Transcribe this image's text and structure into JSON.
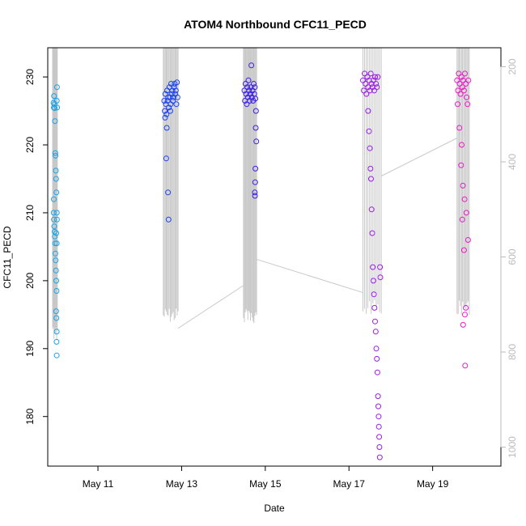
{
  "chart_data": {
    "type": "scatter",
    "title": "ATOM4 Northbound CFC11_PECD",
    "xlabel": "Date",
    "ylabel": "CFC11_PECD",
    "xlim": [
      "2017-05-09 19:12",
      "2017-05-20 15:10"
    ],
    "ylim": [
      172.7,
      234.3
    ],
    "y2lim": [
      1040,
      160
    ],
    "x_ticks": [
      {
        "date": "2017-05-11",
        "label": "May 11"
      },
      {
        "date": "2017-05-13",
        "label": "May 13"
      },
      {
        "date": "2017-05-15",
        "label": "May 15"
      },
      {
        "date": "2017-05-17",
        "label": "May 17"
      },
      {
        "date": "2017-05-19",
        "label": "May 19"
      }
    ],
    "y_ticks": [
      180,
      190,
      200,
      210,
      220,
      230
    ],
    "y2_ticks": [
      200,
      400,
      600,
      800,
      1000
    ],
    "grid": false,
    "legend": "none",
    "colors": {
      "flight_1": "#1aa3e8",
      "flight_2": "#1a44ee",
      "flight_3": "#3a1ee8",
      "flight_4": "#9a1ee8",
      "flight_5": "#e81ac8",
      "altitude_line": "#c8c8c8"
    },
    "series": [
      {
        "values": [
          {
            "x": "2017-05-09 22:30",
            "y": 226.2
          },
          {
            "x": "2017-05-09 22:40",
            "y": 225.5
          },
          {
            "x": "2017-05-09 22:50",
            "y": 227.2
          },
          {
            "x": "2017-05-09 23:00",
            "y": 226.0
          },
          {
            "x": "2017-05-09 23:10",
            "y": 225.4
          },
          {
            "x": "2017-05-09 23:20",
            "y": 223.5
          },
          {
            "x": "2017-05-09 23:30",
            "y": 218.8
          },
          {
            "x": "2017-05-09 23:40",
            "y": 218.4
          },
          {
            "x": "2017-05-09 23:50",
            "y": 216.2
          },
          {
            "x": "2017-05-10 00:00",
            "y": 215.0
          },
          {
            "x": "2017-05-10 00:10",
            "y": 213.0
          },
          {
            "x": "2017-05-09 22:40",
            "y": 212.0
          },
          {
            "x": "2017-05-09 22:35",
            "y": 210.0
          },
          {
            "x": "2017-05-09 22:45",
            "y": 209.0
          },
          {
            "x": "2017-05-09 22:55",
            "y": 208.0
          },
          {
            "x": "2017-05-09 23:05",
            "y": 207.2
          },
          {
            "x": "2017-05-09 23:15",
            "y": 206.5
          },
          {
            "x": "2017-05-09 23:25",
            "y": 205.5
          },
          {
            "x": "2017-05-09 23:35",
            "y": 204.0
          },
          {
            "x": "2017-05-09 23:45",
            "y": 203.0
          },
          {
            "x": "2017-05-09 23:55",
            "y": 201.5
          },
          {
            "x": "2017-05-10 00:05",
            "y": 200.0
          },
          {
            "x": "2017-05-10 00:15",
            "y": 198.5
          },
          {
            "x": "2017-05-10 00:00",
            "y": 195.5
          },
          {
            "x": "2017-05-10 00:10",
            "y": 194.5
          },
          {
            "x": "2017-05-10 00:20",
            "y": 192.5
          },
          {
            "x": "2017-05-10 00:15",
            "y": 191.0
          },
          {
            "x": "2017-05-10 00:20",
            "y": 189.0
          },
          {
            "x": "2017-05-10 00:30",
            "y": 228.5
          },
          {
            "x": "2017-05-10 00:25",
            "y": 226.5
          },
          {
            "x": "2017-05-10 00:35",
            "y": 225.5
          },
          {
            "x": "2017-05-10 00:20",
            "y": 205.5
          },
          {
            "x": "2017-05-10 00:25",
            "y": 210.0
          },
          {
            "x": "2017-05-10 00:30",
            "y": 209.0
          },
          {
            "x": "2017-05-10 00:05",
            "y": 207.0
          }
        ]
      },
      {
        "values": [
          {
            "x": "2017-05-12 14:00",
            "y": 226.5
          },
          {
            "x": "2017-05-12 14:20",
            "y": 225.0
          },
          {
            "x": "2017-05-12 14:40",
            "y": 227.5
          },
          {
            "x": "2017-05-12 15:00",
            "y": 226.0
          },
          {
            "x": "2017-05-12 15:20",
            "y": 224.5
          },
          {
            "x": "2017-05-12 15:40",
            "y": 228.0
          },
          {
            "x": "2017-05-12 16:00",
            "y": 226.5
          },
          {
            "x": "2017-05-12 16:20",
            "y": 227.0
          },
          {
            "x": "2017-05-12 16:40",
            "y": 225.5
          },
          {
            "x": "2017-05-12 17:00",
            "y": 228.5
          },
          {
            "x": "2017-05-12 17:20",
            "y": 227.0
          },
          {
            "x": "2017-05-12 17:40",
            "y": 226.0
          },
          {
            "x": "2017-05-12 18:00",
            "y": 229.0
          },
          {
            "x": "2017-05-12 18:20",
            "y": 227.5
          },
          {
            "x": "2017-05-12 18:40",
            "y": 228.0
          },
          {
            "x": "2017-05-12 19:00",
            "y": 226.5
          },
          {
            "x": "2017-05-12 19:20",
            "y": 227.0
          },
          {
            "x": "2017-05-12 19:40",
            "y": 228.5
          },
          {
            "x": "2017-05-12 20:00",
            "y": 229.0
          },
          {
            "x": "2017-05-12 20:20",
            "y": 227.5
          },
          {
            "x": "2017-05-12 20:40",
            "y": 228.0
          },
          {
            "x": "2017-05-12 21:00",
            "y": 226.0
          },
          {
            "x": "2017-05-12 21:20",
            "y": 229.2
          },
          {
            "x": "2017-05-12 21:40",
            "y": 227.0
          },
          {
            "x": "2017-05-12 15:30",
            "y": 222.5
          },
          {
            "x": "2017-05-12 15:10",
            "y": 218.0
          },
          {
            "x": "2017-05-12 16:10",
            "y": 213.0
          },
          {
            "x": "2017-05-12 16:30",
            "y": 209.0
          },
          {
            "x": "2017-05-12 14:30",
            "y": 224.0
          },
          {
            "x": "2017-05-12 17:30",
            "y": 225.0
          }
        ]
      },
      {
        "values": [
          {
            "x": "2017-05-14 12:00",
            "y": 228.0
          },
          {
            "x": "2017-05-14 12:20",
            "y": 226.5
          },
          {
            "x": "2017-05-14 12:40",
            "y": 229.0
          },
          {
            "x": "2017-05-14 13:00",
            "y": 227.5
          },
          {
            "x": "2017-05-14 13:20",
            "y": 226.0
          },
          {
            "x": "2017-05-14 13:40",
            "y": 228.5
          },
          {
            "x": "2017-05-14 14:00",
            "y": 227.0
          },
          {
            "x": "2017-05-14 14:20",
            "y": 229.5
          },
          {
            "x": "2017-05-14 14:40",
            "y": 228.0
          },
          {
            "x": "2017-05-14 15:00",
            "y": 226.5
          },
          {
            "x": "2017-05-14 15:20",
            "y": 227.5
          },
          {
            "x": "2017-05-14 15:40",
            "y": 228.5
          },
          {
            "x": "2017-05-14 16:00",
            "y": 231.7
          },
          {
            "x": "2017-05-14 16:20",
            "y": 227.0
          },
          {
            "x": "2017-05-14 16:40",
            "y": 228.0
          },
          {
            "x": "2017-05-14 17:00",
            "y": 226.5
          },
          {
            "x": "2017-05-14 17:20",
            "y": 229.0
          },
          {
            "x": "2017-05-14 17:40",
            "y": 227.5
          },
          {
            "x": "2017-05-14 18:00",
            "y": 228.5
          },
          {
            "x": "2017-05-14 18:20",
            "y": 226.8
          },
          {
            "x": "2017-05-14 18:40",
            "y": 225.0
          },
          {
            "x": "2017-05-14 18:30",
            "y": 222.5
          },
          {
            "x": "2017-05-14 18:50",
            "y": 220.5
          },
          {
            "x": "2017-05-14 18:20",
            "y": 216.5
          },
          {
            "x": "2017-05-14 18:10",
            "y": 214.5
          },
          {
            "x": "2017-05-14 18:00",
            "y": 213.0
          },
          {
            "x": "2017-05-14 18:05",
            "y": 212.5
          }
        ]
      },
      {
        "values": [
          {
            "x": "2017-05-17 08:00",
            "y": 229.5
          },
          {
            "x": "2017-05-17 08:30",
            "y": 228.0
          },
          {
            "x": "2017-05-17 09:00",
            "y": 230.5
          },
          {
            "x": "2017-05-17 09:30",
            "y": 229.0
          },
          {
            "x": "2017-05-17 10:00",
            "y": 227.5
          },
          {
            "x": "2017-05-17 10:30",
            "y": 230.0
          },
          {
            "x": "2017-05-17 11:00",
            "y": 228.5
          },
          {
            "x": "2017-05-17 11:30",
            "y": 229.5
          },
          {
            "x": "2017-05-17 12:00",
            "y": 228.0
          },
          {
            "x": "2017-05-17 12:30",
            "y": 230.5
          },
          {
            "x": "2017-05-17 13:00",
            "y": 229.0
          },
          {
            "x": "2017-05-17 13:30",
            "y": 228.5
          },
          {
            "x": "2017-05-17 14:00",
            "y": 229.5
          },
          {
            "x": "2017-05-17 14:30",
            "y": 228.0
          },
          {
            "x": "2017-05-17 15:00",
            "y": 230.0
          },
          {
            "x": "2017-05-17 15:30",
            "y": 229.0
          },
          {
            "x": "2017-05-17 16:00",
            "y": 228.5
          },
          {
            "x": "2017-05-17 16:30",
            "y": 230.0
          },
          {
            "x": "2017-05-17 11:00",
            "y": 225.0
          },
          {
            "x": "2017-05-17 11:30",
            "y": 222.0
          },
          {
            "x": "2017-05-17 12:00",
            "y": 219.5
          },
          {
            "x": "2017-05-17 12:20",
            "y": 216.5
          },
          {
            "x": "2017-05-17 12:40",
            "y": 215.0
          },
          {
            "x": "2017-05-17 13:00",
            "y": 210.5
          },
          {
            "x": "2017-05-17 13:20",
            "y": 207.0
          },
          {
            "x": "2017-05-17 13:40",
            "y": 202.0
          },
          {
            "x": "2017-05-17 14:00",
            "y": 200.0
          },
          {
            "x": "2017-05-17 14:20",
            "y": 198.0
          },
          {
            "x": "2017-05-17 14:40",
            "y": 196.0
          },
          {
            "x": "2017-05-17 15:00",
            "y": 194.0
          },
          {
            "x": "2017-05-17 15:20",
            "y": 192.5
          },
          {
            "x": "2017-05-17 15:40",
            "y": 190.0
          },
          {
            "x": "2017-05-17 16:00",
            "y": 188.5
          },
          {
            "x": "2017-05-17 16:20",
            "y": 186.5
          },
          {
            "x": "2017-05-17 16:40",
            "y": 183.0
          },
          {
            "x": "2017-05-17 16:50",
            "y": 181.5
          },
          {
            "x": "2017-05-17 17:00",
            "y": 180.0
          },
          {
            "x": "2017-05-17 17:10",
            "y": 178.5
          },
          {
            "x": "2017-05-17 17:20",
            "y": 177.0
          },
          {
            "x": "2017-05-17 17:30",
            "y": 175.5
          },
          {
            "x": "2017-05-17 17:40",
            "y": 174.0
          },
          {
            "x": "2017-05-17 17:50",
            "y": 202.0
          },
          {
            "x": "2017-05-17 18:00",
            "y": 200.5
          }
        ]
      },
      {
        "values": [
          {
            "x": "2017-05-19 14:00",
            "y": 229.5
          },
          {
            "x": "2017-05-19 14:30",
            "y": 228.0
          },
          {
            "x": "2017-05-19 15:00",
            "y": 230.5
          },
          {
            "x": "2017-05-19 15:30",
            "y": 229.0
          },
          {
            "x": "2017-05-19 16:00",
            "y": 227.5
          },
          {
            "x": "2017-05-19 16:30",
            "y": 230.0
          },
          {
            "x": "2017-05-19 17:00",
            "y": 228.5
          },
          {
            "x": "2017-05-19 17:30",
            "y": 229.5
          },
          {
            "x": "2017-05-19 18:00",
            "y": 228.0
          },
          {
            "x": "2017-05-19 18:30",
            "y": 230.5
          },
          {
            "x": "2017-05-19 19:00",
            "y": 229.0
          },
          {
            "x": "2017-05-19 19:30",
            "y": 227.0
          },
          {
            "x": "2017-05-19 20:00",
            "y": 226.0
          },
          {
            "x": "2017-05-19 20:30",
            "y": 229.5
          },
          {
            "x": "2017-05-19 14:20",
            "y": 226.0
          },
          {
            "x": "2017-05-19 15:20",
            "y": 222.5
          },
          {
            "x": "2017-05-19 16:20",
            "y": 217.0
          },
          {
            "x": "2017-05-19 17:20",
            "y": 214.0
          },
          {
            "x": "2017-05-19 18:20",
            "y": 212.0
          },
          {
            "x": "2017-05-19 19:20",
            "y": 210.0
          },
          {
            "x": "2017-05-19 20:20",
            "y": 206.0
          },
          {
            "x": "2017-05-19 18:00",
            "y": 204.5
          },
          {
            "x": "2017-05-19 17:00",
            "y": 209.0
          },
          {
            "x": "2017-05-19 19:00",
            "y": 196.0
          },
          {
            "x": "2017-05-19 18:30",
            "y": 195.0
          },
          {
            "x": "2017-05-19 17:30",
            "y": 193.5
          },
          {
            "x": "2017-05-19 18:40",
            "y": 187.5
          },
          {
            "x": "2017-05-19 16:40",
            "y": 220.0
          }
        ]
      }
    ]
  }
}
